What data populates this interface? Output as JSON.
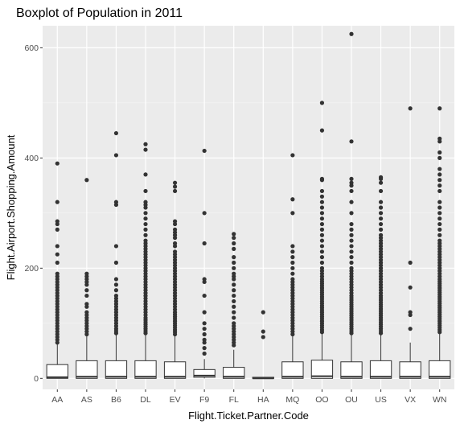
{
  "chart_data": {
    "type": "boxplot",
    "title": "Boxplot of Population in 2011",
    "xlabel": "Flight.Ticket.Partner.Code",
    "ylabel": "Flight.Airport.Shopping.Amount",
    "ylim": [
      -20,
      640
    ],
    "yticks": [
      0,
      200,
      400,
      600
    ],
    "grid": true,
    "categories": [
      "AA",
      "AS",
      "B6",
      "DL",
      "EV",
      "F9",
      "FL",
      "HA",
      "MQ",
      "OO",
      "OU",
      "US",
      "VX",
      "WN"
    ],
    "boxes": [
      {
        "category": "AA",
        "min": 0,
        "q1": 0,
        "median": 2,
        "q3": 25,
        "max": 62,
        "outliers": [
          65,
          70,
          75,
          80,
          85,
          90,
          95,
          100,
          105,
          110,
          115,
          120,
          125,
          130,
          135,
          140,
          145,
          150,
          155,
          160,
          165,
          170,
          175,
          180,
          185,
          190,
          210,
          225,
          240,
          270,
          280,
          285,
          320,
          390
        ]
      },
      {
        "category": "AS",
        "min": 0,
        "q1": 0,
        "median": 3,
        "q3": 32,
        "max": 78,
        "outliers": [
          80,
          85,
          90,
          95,
          100,
          105,
          110,
          115,
          120,
          130,
          135,
          150,
          160,
          170,
          175,
          180,
          185,
          190,
          360
        ]
      },
      {
        "category": "B6",
        "min": 0,
        "q1": 0,
        "median": 3,
        "q3": 32,
        "max": 80,
        "outliers": [
          82,
          86,
          90,
          95,
          100,
          105,
          110,
          115,
          120,
          125,
          130,
          135,
          140,
          145,
          150,
          160,
          170,
          180,
          210,
          240,
          315,
          320,
          405,
          445
        ]
      },
      {
        "category": "DL",
        "min": 0,
        "q1": 0,
        "median": 3,
        "q3": 32,
        "max": 80,
        "outliers": [
          82,
          86,
          90,
          94,
          98,
          102,
          106,
          110,
          115,
          120,
          125,
          130,
          135,
          140,
          145,
          150,
          155,
          160,
          165,
          170,
          175,
          180,
          185,
          190,
          195,
          200,
          205,
          210,
          215,
          220,
          225,
          230,
          235,
          240,
          245,
          250,
          260,
          270,
          280,
          290,
          300,
          310,
          315,
          320,
          340,
          370,
          415,
          425
        ]
      },
      {
        "category": "EV",
        "min": 0,
        "q1": 0,
        "median": 3,
        "q3": 30,
        "max": 78,
        "outliers": [
          80,
          84,
          88,
          92,
          96,
          100,
          104,
          108,
          112,
          116,
          120,
          125,
          130,
          135,
          140,
          145,
          150,
          155,
          160,
          165,
          170,
          175,
          180,
          185,
          190,
          195,
          200,
          205,
          210,
          215,
          220,
          225,
          230,
          240,
          245,
          255,
          260,
          265,
          270,
          280,
          285,
          340,
          348,
          355
        ]
      },
      {
        "category": "F9",
        "min": 0,
        "q1": 2,
        "median": 5,
        "q3": 16,
        "max": 35,
        "outliers": [
          45,
          55,
          65,
          70,
          80,
          90,
          100,
          120,
          150,
          175,
          180,
          245,
          300,
          413
        ]
      },
      {
        "category": "FL",
        "min": 0,
        "q1": 0,
        "median": 3,
        "q3": 20,
        "max": 52,
        "outliers": [
          60,
          65,
          70,
          75,
          80,
          85,
          90,
          95,
          100,
          110,
          120,
          130,
          140,
          150,
          160,
          170,
          180,
          185,
          190,
          200,
          210,
          220,
          235,
          245,
          255,
          262
        ]
      },
      {
        "category": "HA",
        "min": 0,
        "q1": 0,
        "median": 0,
        "q3": 2,
        "max": 2,
        "outliers": [
          75,
          85,
          120
        ]
      },
      {
        "category": "MQ",
        "min": 0,
        "q1": 0,
        "median": 3,
        "q3": 30,
        "max": 78,
        "outliers": [
          80,
          85,
          90,
          95,
          100,
          105,
          110,
          115,
          120,
          125,
          130,
          135,
          140,
          145,
          150,
          155,
          160,
          165,
          170,
          175,
          180,
          190,
          200,
          210,
          220,
          230,
          240,
          300,
          325,
          405
        ]
      },
      {
        "category": "OO",
        "min": 0,
        "q1": 0,
        "median": 4,
        "q3": 33,
        "max": 82,
        "outliers": [
          84,
          88,
          92,
          96,
          100,
          104,
          108,
          112,
          116,
          120,
          124,
          128,
          132,
          136,
          140,
          144,
          148,
          152,
          156,
          160,
          164,
          168,
          172,
          176,
          180,
          185,
          190,
          195,
          200,
          210,
          220,
          230,
          240,
          250,
          260,
          270,
          280,
          290,
          300,
          310,
          320,
          330,
          340,
          360,
          362,
          450,
          500
        ]
      },
      {
        "category": "OU",
        "min": 0,
        "q1": 0,
        "median": 3,
        "q3": 30,
        "max": 80,
        "outliers": [
          82,
          86,
          90,
          94,
          98,
          102,
          106,
          110,
          114,
          118,
          122,
          126,
          130,
          134,
          138,
          142,
          146,
          150,
          155,
          160,
          165,
          170,
          175,
          180,
          185,
          190,
          195,
          200,
          210,
          220,
          230,
          240,
          250,
          260,
          270,
          280,
          300,
          320,
          340,
          350,
          355,
          362,
          430,
          625
        ]
      },
      {
        "category": "US",
        "min": 0,
        "q1": 0,
        "median": 3,
        "q3": 32,
        "max": 80,
        "outliers": [
          82,
          86,
          90,
          94,
          98,
          102,
          106,
          110,
          114,
          118,
          122,
          126,
          130,
          134,
          138,
          142,
          146,
          150,
          155,
          160,
          165,
          170,
          175,
          180,
          185,
          190,
          195,
          200,
          205,
          210,
          215,
          220,
          225,
          230,
          235,
          240,
          245,
          250,
          255,
          260,
          270,
          280,
          290,
          300,
          310,
          320,
          340,
          355,
          362,
          365
        ]
      },
      {
        "category": "VX",
        "min": 0,
        "q1": 0,
        "median": 3,
        "q3": 30,
        "max": 65,
        "outliers": [
          90,
          115,
          120,
          165,
          210,
          490
        ]
      },
      {
        "category": "WN",
        "min": 0,
        "q1": 0,
        "median": 3,
        "q3": 32,
        "max": 82,
        "outliers": [
          84,
          88,
          92,
          96,
          100,
          104,
          108,
          112,
          116,
          120,
          124,
          128,
          132,
          136,
          140,
          144,
          148,
          152,
          156,
          160,
          164,
          168,
          172,
          176,
          180,
          185,
          190,
          195,
          200,
          205,
          210,
          215,
          220,
          225,
          230,
          235,
          240,
          245,
          250,
          260,
          270,
          280,
          290,
          300,
          310,
          320,
          340,
          350,
          360,
          370,
          380,
          400,
          410,
          430,
          435,
          490
        ]
      }
    ]
  }
}
